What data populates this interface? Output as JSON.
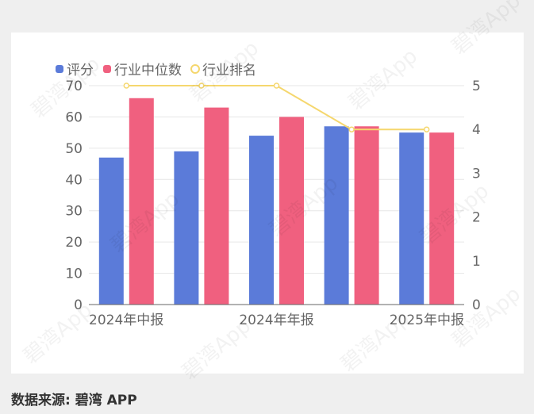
{
  "chart_data": {
    "type": "bar",
    "legend": {
      "placement": "top-left"
    },
    "categories": [
      "2024年中报",
      "",
      "2024年年报",
      "",
      "2025年中报"
    ],
    "x_tick_labels": [
      "2024年中报",
      "2024年年报",
      "2025年中报"
    ],
    "series": [
      {
        "name": "评分",
        "type": "bar",
        "axis": "left",
        "color": "#5b7bd9",
        "values": [
          47,
          49,
          54,
          57,
          55
        ]
      },
      {
        "name": "行业中位数",
        "type": "bar",
        "axis": "left",
        "color": "#f0607f",
        "values": [
          66,
          63,
          60,
          57,
          55
        ]
      },
      {
        "name": "行业排名",
        "type": "line",
        "axis": "right",
        "color": "#f5d76e",
        "values": [
          5,
          5,
          5,
          4,
          4
        ]
      }
    ],
    "y_left": {
      "ylim": [
        0,
        70
      ],
      "ticks": [
        "0",
        "10",
        "20",
        "30",
        "40",
        "50",
        "60",
        "70"
      ]
    },
    "y_right": {
      "ylim": [
        0,
        5
      ],
      "ticks": [
        "0",
        "1",
        "2",
        "3",
        "4",
        "5"
      ]
    },
    "grid": true
  },
  "source_text": "数据来源: 碧湾 APP",
  "watermark_text": "碧湾App"
}
